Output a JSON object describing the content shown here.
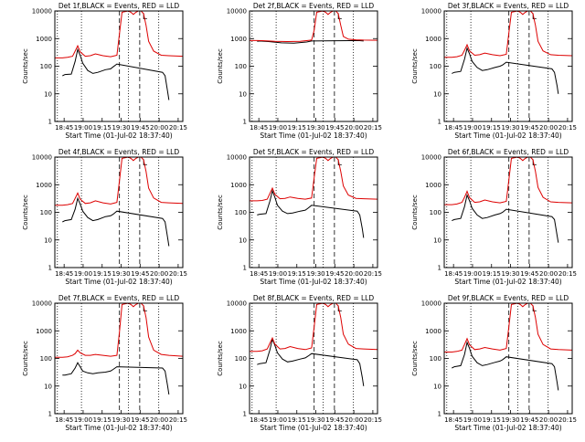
{
  "chart_data": {
    "type": "line",
    "layout": "3x3 grid of small-multiple log-scale time-series panels",
    "ylabel": "Counts/sec",
    "xlabel": "Start Time (01-Jul-02 18:37:40)",
    "y_scale": "log",
    "ylim": [
      1,
      10000
    ],
    "y_ticks": [
      1,
      10,
      100,
      1000,
      10000
    ],
    "y_tick_labels": [
      "1",
      "10",
      "100",
      "1000",
      "10000"
    ],
    "x_range_minutes": [
      0,
      101
    ],
    "x_ticks_minutes": [
      7.33,
      22.33,
      37.33,
      52.33,
      67.33,
      82.33,
      97.33
    ],
    "x_tick_labels": [
      "18:45",
      "19:00",
      "19:15",
      "19:30",
      "19:45",
      "20:00",
      "20:15"
    ],
    "legend_note": "BLACK = Events, RED = LLD",
    "series_colors": {
      "Events": "#000000",
      "LLD": "#dd0000"
    },
    "markers": {
      "dotted_lines_min": [
        2,
        21,
        58,
        82
      ],
      "dashed_lines_min": [
        51,
        67
      ],
      "night_bracket_symbol": "L"
    },
    "panels": [
      {
        "title": "Det 1f,BLACK = Events, RED = LLD",
        "series": [
          {
            "name": "Events",
            "x": [
              6,
              8,
              13,
              16,
              18,
              20,
              22,
              26,
              30,
              34,
              40,
              44,
              46,
              49,
              85,
              87,
              89,
              90
            ],
            "values": [
              45,
              50,
              52,
              150,
              400,
              250,
              130,
              70,
              55,
              60,
              75,
              80,
              95,
              120,
              60,
              45,
              12,
              6
            ]
          },
          {
            "name": "LLD",
            "x": [
              0,
              6,
              10,
              14,
              16,
              18,
              20,
              24,
              28,
              32,
              38,
              44,
              49,
              51,
              53,
              58,
              60,
              62,
              64,
              66,
              68,
              70,
              72,
              74,
              78,
              84,
              90,
              101
            ],
            "values": [
              200,
              200,
              210,
              230,
              350,
              550,
              330,
              230,
              240,
              280,
              240,
              220,
              250,
              1500,
              9000,
              10000,
              9000,
              7500,
              9000,
              10000,
              10000,
              8000,
              3000,
              800,
              350,
              250,
              240,
              230
            ]
          }
        ]
      },
      {
        "title": "Det 2f,BLACK = Events, RED = LLD",
        "series": [
          {
            "name": "Events",
            "x": [
              6,
              8,
              15,
              25,
              35,
              45,
              49,
              86,
              90
            ],
            "values": [
              800,
              820,
              780,
              700,
              680,
              750,
              820,
              850,
              820
            ]
          },
          {
            "name": "LLD",
            "x": [
              0,
              6,
              10,
              20,
              30,
              40,
              49,
              51,
              53,
              58,
              60,
              62,
              64,
              66,
              68,
              70,
              72,
              74,
              78,
              84,
              90,
              101
            ],
            "values": [
              850,
              850,
              840,
              800,
              780,
              800,
              880,
              2000,
              9000,
              10000,
              9000,
              7500,
              9000,
              10000,
              10000,
              8000,
              3000,
              1200,
              950,
              900,
              880,
              870
            ]
          }
        ]
      },
      {
        "title": "Det 3f,BLACK = Events, RED = LLD",
        "series": [
          {
            "name": "Events",
            "x": [
              6,
              8,
              13,
              16,
              18,
              20,
              22,
              26,
              30,
              34,
              40,
              44,
              46,
              49,
              85,
              87,
              89,
              90
            ],
            "values": [
              55,
              60,
              65,
              180,
              450,
              280,
              150,
              90,
              70,
              75,
              90,
              100,
              110,
              140,
              80,
              60,
              20,
              10
            ]
          },
          {
            "name": "LLD",
            "x": [
              0,
              6,
              10,
              14,
              16,
              18,
              20,
              24,
              28,
              32,
              38,
              44,
              49,
              51,
              53,
              58,
              60,
              62,
              64,
              66,
              68,
              70,
              72,
              74,
              78,
              84,
              90,
              101
            ],
            "values": [
              210,
              210,
              220,
              250,
              380,
              600,
              360,
              250,
              260,
              300,
              260,
              240,
              270,
              1600,
              9000,
              10000,
              9000,
              7500,
              9000,
              10000,
              10000,
              8000,
              3000,
              800,
              360,
              260,
              250,
              240
            ]
          }
        ]
      },
      {
        "title": "Det 4f,BLACK = Events, RED = LLD",
        "series": [
          {
            "name": "Events",
            "x": [
              6,
              8,
              13,
              16,
              18,
              20,
              22,
              26,
              30,
              34,
              40,
              44,
              46,
              49,
              85,
              87,
              89,
              90
            ],
            "values": [
              45,
              50,
              55,
              130,
              320,
              200,
              110,
              65,
              50,
              55,
              70,
              75,
              85,
              110,
              60,
              45,
              12,
              6
            ]
          },
          {
            "name": "LLD",
            "x": [
              0,
              6,
              10,
              14,
              16,
              18,
              20,
              24,
              28,
              32,
              38,
              44,
              49,
              51,
              53,
              58,
              60,
              62,
              64,
              66,
              68,
              70,
              72,
              74,
              78,
              84,
              90,
              101
            ],
            "values": [
              180,
              180,
              190,
              210,
              320,
              500,
              300,
              210,
              220,
              260,
              220,
              200,
              230,
              1400,
              9000,
              10000,
              9000,
              7500,
              9000,
              10000,
              10000,
              8000,
              3000,
              750,
              330,
              230,
              220,
              210
            ]
          }
        ]
      },
      {
        "title": "Det 5f,BLACK = Events, RED = LLD",
        "series": [
          {
            "name": "Events",
            "x": [
              6,
              8,
              13,
              16,
              18,
              20,
              22,
              26,
              30,
              34,
              40,
              44,
              46,
              49,
              85,
              87,
              89,
              90
            ],
            "values": [
              80,
              85,
              90,
              250,
              600,
              350,
              180,
              110,
              90,
              95,
              110,
              120,
              140,
              180,
              110,
              80,
              25,
              12
            ]
          },
          {
            "name": "LLD",
            "x": [
              0,
              6,
              10,
              14,
              16,
              18,
              20,
              24,
              28,
              32,
              38,
              44,
              49,
              51,
              53,
              58,
              60,
              62,
              64,
              66,
              68,
              70,
              72,
              74,
              78,
              84,
              90,
              101
            ],
            "values": [
              260,
              260,
              270,
              300,
              480,
              750,
              450,
              310,
              320,
              360,
              320,
              300,
              330,
              1800,
              9000,
              10000,
              9000,
              7500,
              9000,
              10000,
              10000,
              8000,
              3000,
              900,
              420,
              320,
              310,
              300
            ]
          }
        ]
      },
      {
        "title": "Det 6f,BLACK = Events, RED = LLD",
        "series": [
          {
            "name": "Events",
            "x": [
              6,
              8,
              13,
              16,
              18,
              20,
              22,
              26,
              30,
              34,
              40,
              44,
              46,
              49,
              85,
              87,
              89,
              90
            ],
            "values": [
              50,
              55,
              60,
              160,
              420,
              260,
              140,
              80,
              60,
              65,
              80,
              90,
              100,
              130,
              70,
              55,
              15,
              8
            ]
          },
          {
            "name": "LLD",
            "x": [
              0,
              6,
              10,
              14,
              16,
              18,
              20,
              24,
              28,
              32,
              38,
              44,
              49,
              51,
              53,
              58,
              60,
              62,
              64,
              66,
              68,
              70,
              72,
              74,
              78,
              84,
              90,
              101
            ],
            "values": [
              190,
              190,
              200,
              230,
              350,
              580,
              340,
              230,
              240,
              280,
              240,
              220,
              250,
              1500,
              9000,
              10000,
              9000,
              7500,
              9000,
              10000,
              10000,
              8000,
              3000,
              800,
              350,
              240,
              230,
              220
            ]
          }
        ]
      },
      {
        "title": "Det 7f,BLACK = Events, RED = LLD",
        "series": [
          {
            "name": "Events",
            "x": [
              6,
              8,
              13,
              16,
              18,
              20,
              22,
              26,
              30,
              34,
              40,
              44,
              46,
              49,
              85,
              87,
              89,
              90
            ],
            "values": [
              25,
              25,
              28,
              45,
              70,
              50,
              35,
              30,
              28,
              30,
              32,
              35,
              40,
              50,
              45,
              35,
              10,
              5
            ]
          },
          {
            "name": "LLD",
            "x": [
              0,
              6,
              10,
              14,
              16,
              18,
              20,
              24,
              28,
              32,
              38,
              44,
              49,
              51,
              53,
              58,
              60,
              62,
              64,
              66,
              68,
              70,
              72,
              74,
              78,
              84,
              90,
              101
            ],
            "values": [
              110,
              110,
              115,
              130,
              150,
              200,
              160,
              130,
              130,
              140,
              130,
              120,
              130,
              900,
              9000,
              10000,
              9000,
              7500,
              9000,
              10000,
              10000,
              8000,
              3000,
              600,
              200,
              140,
              130,
              120
            ]
          }
        ]
      },
      {
        "title": "Det 8f,BLACK = Events, RED = LLD",
        "series": [
          {
            "name": "Events",
            "x": [
              6,
              8,
              13,
              16,
              18,
              20,
              22,
              26,
              30,
              34,
              40,
              44,
              46,
              49,
              85,
              87,
              89,
              90
            ],
            "values": [
              60,
              65,
              70,
              200,
              500,
              300,
              160,
              95,
              75,
              80,
              95,
              105,
              120,
              150,
              90,
              65,
              20,
              10
            ]
          },
          {
            "name": "LLD",
            "x": [
              0,
              6,
              10,
              14,
              16,
              18,
              20,
              24,
              28,
              32,
              38,
              44,
              49,
              51,
              53,
              58,
              60,
              62,
              64,
              66,
              68,
              70,
              72,
              74,
              78,
              84,
              90,
              101
            ],
            "values": [
              180,
              180,
              190,
              220,
              350,
              550,
              330,
              220,
              230,
              270,
              230,
              210,
              240,
              1400,
              9000,
              10000,
              9000,
              7500,
              9000,
              10000,
              10000,
              8000,
              3000,
              750,
              330,
              230,
              220,
              210
            ]
          }
        ]
      },
      {
        "title": "Det 9f,BLACK = Events, RED = LLD",
        "series": [
          {
            "name": "Events",
            "x": [
              6,
              8,
              13,
              16,
              18,
              20,
              22,
              26,
              30,
              34,
              40,
              44,
              46,
              49,
              85,
              87,
              89,
              90
            ],
            "values": [
              45,
              50,
              55,
              140,
              380,
              230,
              120,
              70,
              55,
              60,
              72,
              80,
              90,
              115,
              65,
              50,
              14,
              7
            ]
          },
          {
            "name": "LLD",
            "x": [
              0,
              6,
              10,
              14,
              16,
              18,
              20,
              24,
              28,
              32,
              38,
              44,
              49,
              51,
              53,
              58,
              60,
              62,
              64,
              66,
              68,
              70,
              72,
              74,
              78,
              84,
              90,
              101
            ],
            "values": [
              170,
              170,
              180,
              200,
              320,
              520,
              310,
              210,
              220,
              250,
              220,
              200,
              230,
              1400,
              9000,
              10000,
              9000,
              7500,
              9000,
              10000,
              10000,
              8000,
              3000,
              750,
              320,
              220,
              210,
              200
            ]
          }
        ]
      }
    ]
  }
}
